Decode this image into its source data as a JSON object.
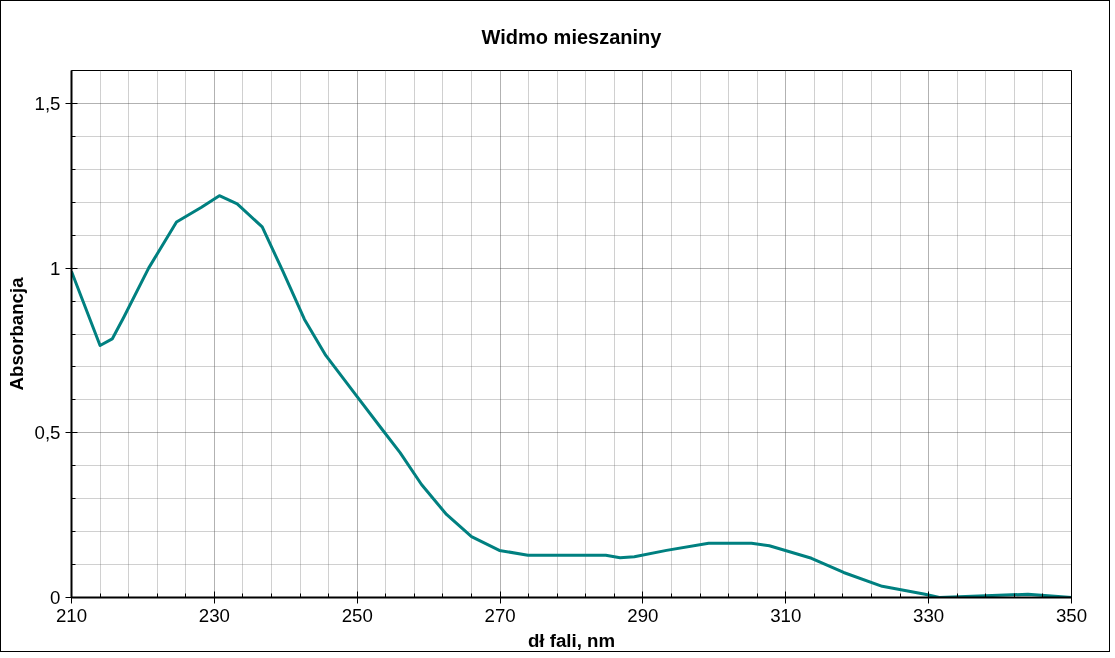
{
  "chart_data": {
    "type": "line",
    "title": "Widmo mieszaniny",
    "xlabel": "dł fali, nm",
    "ylabel": "Absorbancja",
    "x": [
      210,
      214,
      215.7,
      217.3,
      220.8,
      224.7,
      228.2,
      230.7,
      233.2,
      236.7,
      239.6,
      242.6,
      245.6,
      249.8,
      253.5,
      256,
      259,
      262.5,
      266,
      269.9,
      273.9,
      284.8,
      286.8,
      288.8,
      293.3,
      299.2,
      305.2,
      307.7,
      313.6,
      318.1,
      323.5,
      329.5,
      331.5,
      343.9,
      350
    ],
    "series": [
      {
        "color": "#008080",
        "values": [
          0.99,
          0.765,
          0.785,
          0.85,
          1.0,
          1.14,
          1.185,
          1.22,
          1.195,
          1.125,
          0.99,
          0.845,
          0.735,
          0.615,
          0.51,
          0.44,
          0.343,
          0.252,
          0.185,
          0.143,
          0.128,
          0.128,
          0.121,
          0.124,
          0.143,
          0.165,
          0.165,
          0.157,
          0.119,
          0.076,
          0.034,
          0.01,
          0.0,
          0.01,
          0.0
        ]
      }
    ],
    "xlim": [
      210,
      350
    ],
    "xticks": [
      210,
      230,
      250,
      270,
      290,
      310,
      330,
      350
    ],
    "ylim": [
      0,
      1.6
    ],
    "yticks": [
      0,
      {
        "value": 0.5,
        "label": "0,5"
      },
      1,
      {
        "value": 1.5,
        "label": "1,5"
      }
    ],
    "grid": true,
    "line_style": "solid"
  }
}
